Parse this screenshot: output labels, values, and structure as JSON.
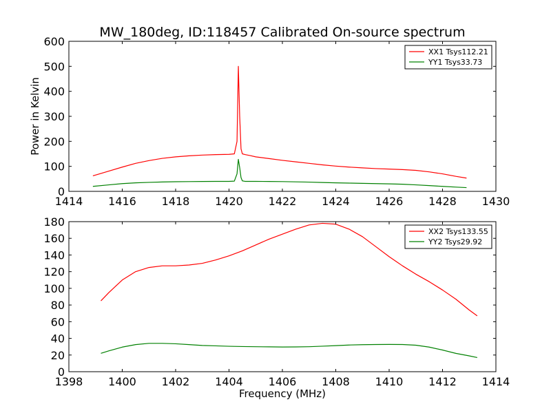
{
  "figure": {
    "title": "MW_180deg, ID:118457 Calibrated On-source spectrum",
    "colors": {
      "xx": "#ff0000",
      "yy": "#008000"
    }
  },
  "chart_data": [
    {
      "type": "line",
      "title": "MW_180deg, ID:118457 Calibrated On-source spectrum",
      "xlabel": "",
      "ylabel": "Power in Kelvin",
      "xlim": [
        1414,
        1430
      ],
      "ylim": [
        0,
        600
      ],
      "xticks": [
        1414,
        1416,
        1418,
        1420,
        1422,
        1424,
        1426,
        1428,
        1430
      ],
      "yticks": [
        0,
        100,
        200,
        300,
        400,
        500,
        600
      ],
      "legend_position": "top-right",
      "grid": false,
      "series": [
        {
          "name": "XX1 Tsys112.21",
          "color": "#ff0000",
          "x": [
            1414.9,
            1415.4,
            1416.0,
            1416.5,
            1417.0,
            1417.5,
            1418.0,
            1418.5,
            1419.0,
            1419.5,
            1420.0,
            1420.2,
            1420.3,
            1420.35,
            1420.4,
            1420.45,
            1420.5,
            1420.6,
            1420.8,
            1421.0,
            1421.5,
            1422.0,
            1422.5,
            1423.0,
            1423.5,
            1424.0,
            1424.5,
            1425.0,
            1425.5,
            1426.0,
            1426.5,
            1427.0,
            1427.5,
            1428.0,
            1428.5,
            1428.9
          ],
          "y": [
            62,
            78,
            97,
            112,
            123,
            132,
            138,
            142,
            145,
            147,
            148,
            150,
            200,
            500,
            300,
            170,
            150,
            147,
            143,
            138,
            131,
            124,
            118,
            112,
            106,
            101,
            97,
            94,
            91,
            89,
            87,
            84,
            78,
            70,
            60,
            53
          ]
        },
        {
          "name": "YY1 Tsys33.73",
          "color": "#008000",
          "x": [
            1414.9,
            1415.5,
            1416.0,
            1416.5,
            1417.0,
            1417.5,
            1418.0,
            1418.5,
            1419.0,
            1419.5,
            1420.0,
            1420.2,
            1420.3,
            1420.35,
            1420.4,
            1420.45,
            1420.5,
            1420.6,
            1421.0,
            1421.5,
            1422.0,
            1422.5,
            1423.0,
            1423.5,
            1424.0,
            1424.5,
            1425.0,
            1425.5,
            1426.0,
            1426.5,
            1427.0,
            1427.5,
            1428.0,
            1428.5,
            1428.9
          ],
          "y": [
            20,
            26,
            31,
            34,
            36,
            37.5,
            38.5,
            39,
            39.5,
            40,
            40,
            41,
            70,
            128,
            95,
            55,
            42,
            40,
            40,
            39.5,
            39,
            38,
            37,
            35.5,
            34,
            33,
            32,
            31,
            30,
            28.5,
            26,
            23,
            20,
            17,
            15
          ]
        }
      ]
    },
    {
      "type": "line",
      "title": "",
      "xlabel": "Frequency (MHz)",
      "ylabel": "",
      "xlim": [
        1398,
        1414
      ],
      "ylim": [
        0,
        180
      ],
      "xticks": [
        1398,
        1400,
        1402,
        1404,
        1406,
        1408,
        1410,
        1412,
        1414
      ],
      "yticks": [
        0,
        20,
        40,
        60,
        80,
        100,
        120,
        140,
        160,
        180
      ],
      "legend_position": "top-right",
      "grid": false,
      "series": [
        {
          "name": "XX2 Tsys133.55",
          "color": "#ff0000",
          "x": [
            1399.2,
            1399.5,
            1400.0,
            1400.5,
            1401.0,
            1401.5,
            1402.0,
            1402.5,
            1403.0,
            1403.5,
            1404.0,
            1404.5,
            1405.0,
            1405.5,
            1406.0,
            1406.5,
            1407.0,
            1407.5,
            1408.0,
            1408.5,
            1409.0,
            1409.5,
            1410.0,
            1410.5,
            1411.0,
            1411.5,
            1412.0,
            1412.5,
            1413.0,
            1413.3
          ],
          "y": [
            85,
            95,
            110,
            120,
            125,
            127,
            127,
            128,
            130,
            134,
            139,
            145,
            152,
            159,
            165,
            171,
            176,
            178,
            177,
            171,
            162,
            150,
            138,
            127,
            117,
            108,
            98,
            87,
            74,
            67
          ]
        },
        {
          "name": "YY2 Tsys29.92",
          "color": "#008000",
          "x": [
            1399.2,
            1399.5,
            1400.0,
            1400.5,
            1401.0,
            1401.5,
            1402.0,
            1402.5,
            1403.0,
            1403.5,
            1404.0,
            1404.5,
            1405.0,
            1405.5,
            1406.0,
            1406.5,
            1407.0,
            1407.5,
            1408.0,
            1408.5,
            1409.0,
            1409.5,
            1410.0,
            1410.5,
            1411.0,
            1411.5,
            1412.0,
            1412.5,
            1413.0,
            1413.3
          ],
          "y": [
            22,
            25,
            29.5,
            32.5,
            34,
            34,
            33.5,
            32.5,
            31.5,
            31,
            30.5,
            30.2,
            30,
            29.8,
            29.6,
            29.7,
            30,
            30.6,
            31.3,
            32,
            32.4,
            32.6,
            32.7,
            32.6,
            31.8,
            29.5,
            26,
            22,
            19,
            17
          ]
        }
      ]
    }
  ]
}
